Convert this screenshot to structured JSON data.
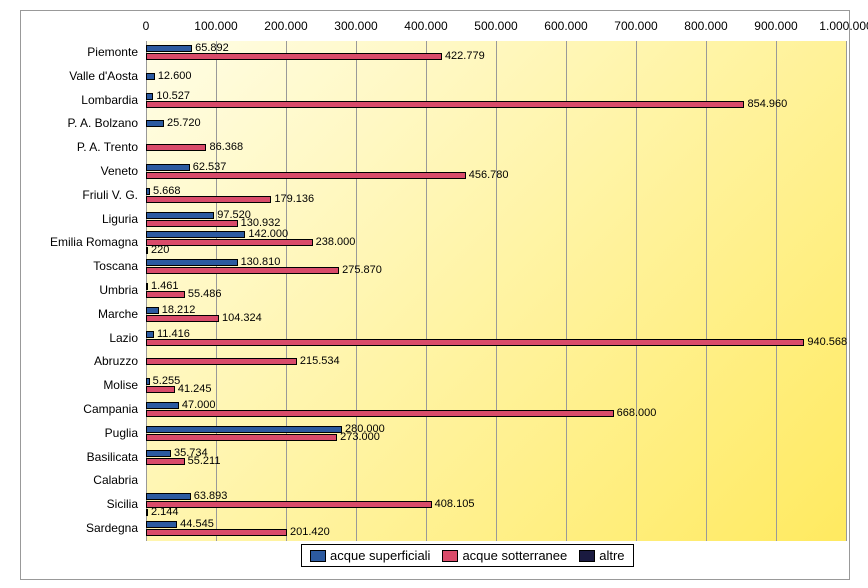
{
  "chart": {
    "type": "bar",
    "orientation": "horizontal",
    "xmin": 0,
    "xmax": 1000000,
    "xtick_step": 100000,
    "xtick_format_thousands_sep": ".",
    "plot_bg_gradient": [
      "#fffde6",
      "#ffea60"
    ],
    "grid_color": "#999999",
    "bar_border_color": "#000000",
    "value_label_fontsize": 11,
    "axis_label_fontsize": 12,
    "legend_fontsize": 13,
    "series": [
      {
        "key": "superficiali",
        "label": "acque superficiali",
        "color": "#2c5aa0"
      },
      {
        "key": "sotterranee",
        "label": "acque sotterranee",
        "color": "#d94b6a"
      },
      {
        "key": "altre",
        "label": "altre",
        "color": "#1a1a40"
      }
    ],
    "categories": [
      {
        "name": "Piemonte",
        "superficiali": 65892,
        "sotterranee": 422779
      },
      {
        "name": "Valle d'Aosta",
        "superficiali": 12600
      },
      {
        "name": "Lombardia",
        "superficiali": 10527,
        "sotterranee": 854960
      },
      {
        "name": "P. A. Bolzano",
        "superficiali": 25720
      },
      {
        "name": "P. A. Trento",
        "sotterranee": 86368
      },
      {
        "name": "Veneto",
        "superficiali": 62537,
        "sotterranee": 456780
      },
      {
        "name": "Friuli V. G.",
        "superficiali": 5668,
        "sotterranee": 179136
      },
      {
        "name": "Liguria",
        "superficiali": 97520,
        "sotterranee": 130932
      },
      {
        "name": "Emilia Romagna",
        "superficiali": 142000,
        "sotterranee": 238000,
        "altre": 220
      },
      {
        "name": "Toscana",
        "superficiali": 130810,
        "sotterranee": 275870
      },
      {
        "name": "Umbria",
        "superficiali": 1461,
        "sotterranee": 55486
      },
      {
        "name": "Marche",
        "superficiali": 18212,
        "sotterranee": 104324
      },
      {
        "name": "Lazio",
        "superficiali": 11416,
        "sotterranee": 940568
      },
      {
        "name": "Abruzzo",
        "sotterranee": 215534
      },
      {
        "name": "Molise",
        "superficiali": 5255,
        "sotterranee": 41245
      },
      {
        "name": "Campania",
        "superficiali": 47000,
        "sotterranee": 668000
      },
      {
        "name": "Puglia",
        "superficiali": 280000,
        "sotterranee": 273000
      },
      {
        "name": "Basilicata",
        "superficiali": 35734,
        "sotterranee": 55211
      },
      {
        "name": "Calabria"
      },
      {
        "name": "Sicilia",
        "superficiali": 63893,
        "sotterranee": 408105,
        "altre": 2144
      },
      {
        "name": "Sardegna",
        "superficiali": 44545,
        "sotterranee": 201420
      }
    ]
  }
}
